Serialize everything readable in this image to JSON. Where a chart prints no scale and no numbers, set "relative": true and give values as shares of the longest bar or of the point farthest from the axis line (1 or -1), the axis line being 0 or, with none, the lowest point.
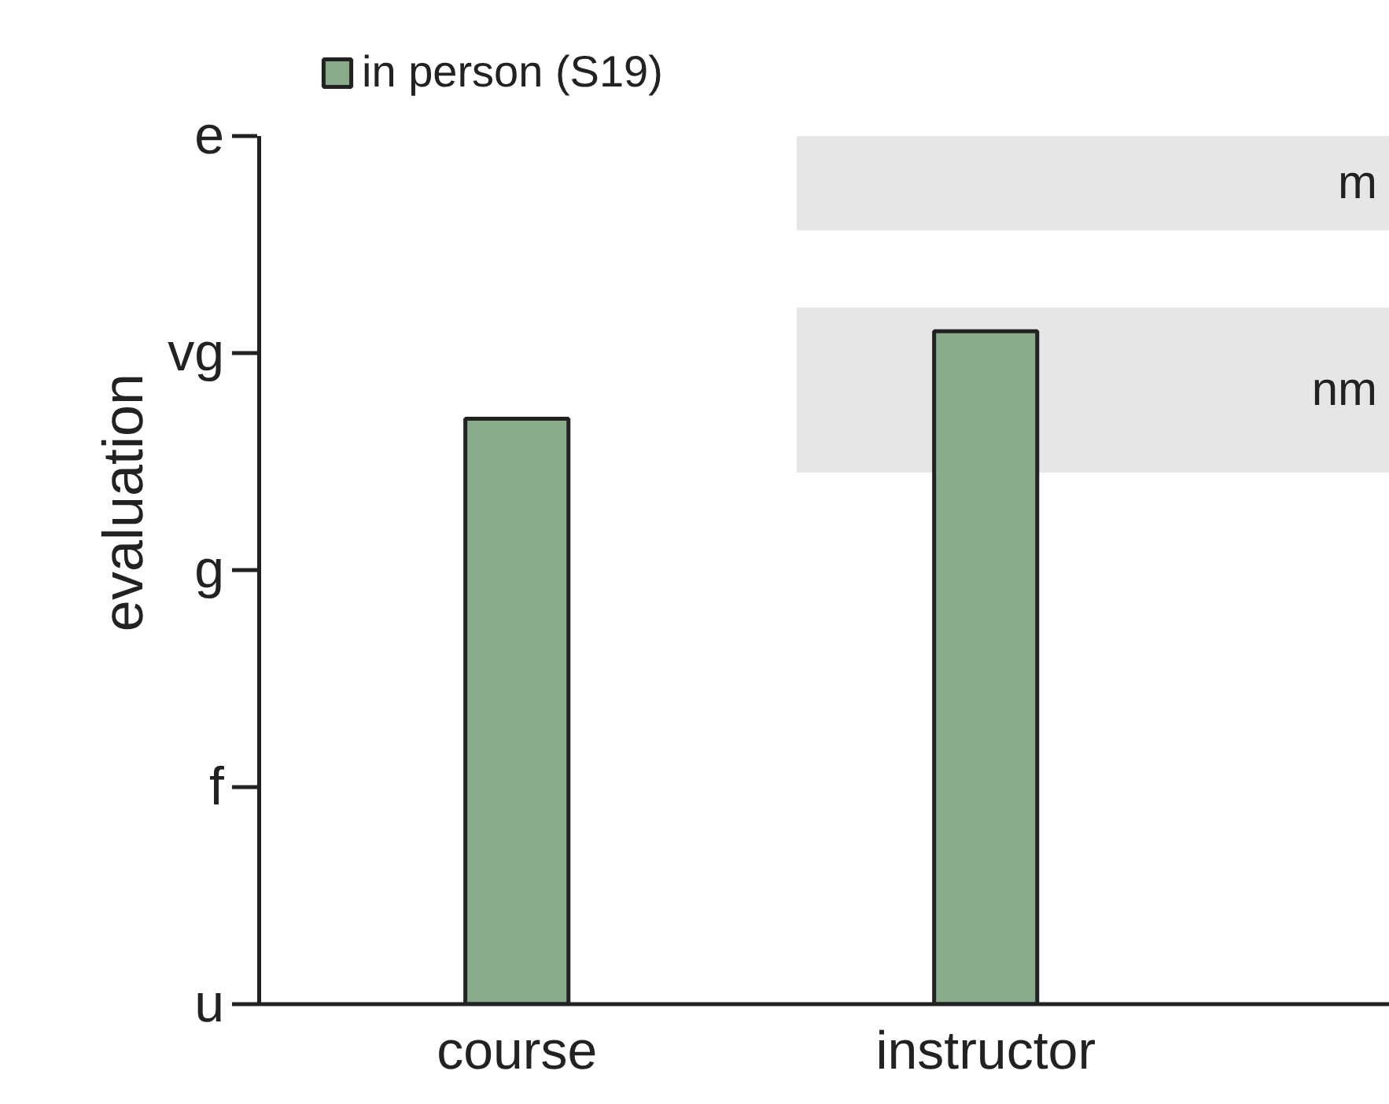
{
  "chart_data": {
    "type": "bar",
    "ylabel": "evaluation",
    "categories": [
      "course",
      "instructor"
    ],
    "series": [
      {
        "name": "in person (S19)",
        "color": "#89ab8c",
        "values": [
          0.87,
          1
        ]
      }
    ],
    "relative": true,
    "bands": [
      {
        "axis": "y",
        "from": 1.15,
        "to": 1.29,
        "label": "m",
        "color": "#e6e6e6"
      },
      {
        "axis": "y",
        "from": 0.79,
        "to": 1.035,
        "label": "nm",
        "color": "#e6e6e6"
      }
    ],
    "annotations": [
      "u",
      "f",
      "g",
      "vg",
      "e"
    ],
    "legend": "top"
  }
}
